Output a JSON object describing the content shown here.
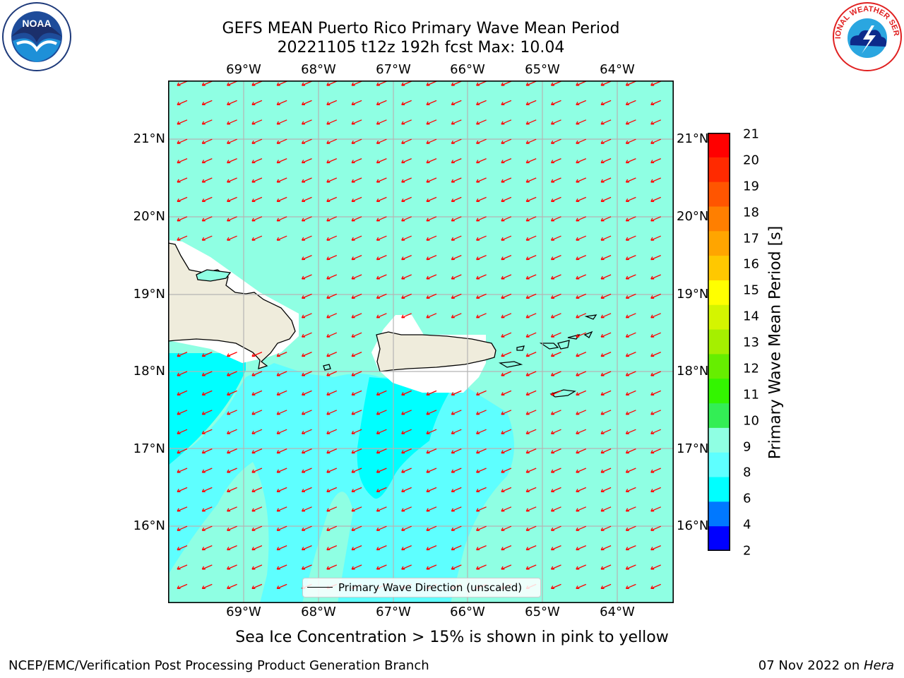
{
  "header": {
    "title_line1": "GEFS MEAN Puerto Rico Primary Wave Mean Period",
    "title_line2": "20221105 t12z 192h fcst   Max: 10.04"
  },
  "logos": {
    "left": "NOAA",
    "right": "NATIONAL WEATHER SERVICE"
  },
  "map": {
    "lon_labels": [
      "69°W",
      "68°W",
      "67°W",
      "66°W",
      "65°W",
      "64°W"
    ],
    "lat_labels": [
      "21°N",
      "20°N",
      "19°N",
      "18°N",
      "17°N",
      "16°N"
    ],
    "colors": {
      "land": "#efecdc",
      "sea_light": "#8fffe3",
      "sea_mid": "#5effff",
      "sea_dark": "#00ffff",
      "arrow": "#ff0000",
      "grid": "#b4b4b4"
    }
  },
  "legend": {
    "label": "Primary Wave Direction (unscaled)"
  },
  "colorbar": {
    "label": "Primary Wave Mean Period [s]",
    "ticks": [
      "21",
      "20",
      "19",
      "18",
      "17",
      "16",
      "15",
      "14",
      "13",
      "12",
      "11",
      "10",
      "9",
      "8",
      "6",
      "4",
      "2"
    ],
    "colors": [
      "#ff0000",
      "#ff2a00",
      "#ff5500",
      "#ff7f00",
      "#ffa500",
      "#ffc800",
      "#ffff00",
      "#d4f500",
      "#a5ef00",
      "#66ee00",
      "#33f500",
      "#33ee55",
      "#8fffe3",
      "#5effff",
      "#00ffff",
      "#0078ff",
      "#0000ff"
    ]
  },
  "caption": "Sea Ice Concentration > 15% is shown in pink to yellow",
  "footer": {
    "left": "NCEP/EMC/Verification Post Processing Product Generation Branch",
    "date": "07 Nov 2022 on ",
    "host": "Hera"
  }
}
